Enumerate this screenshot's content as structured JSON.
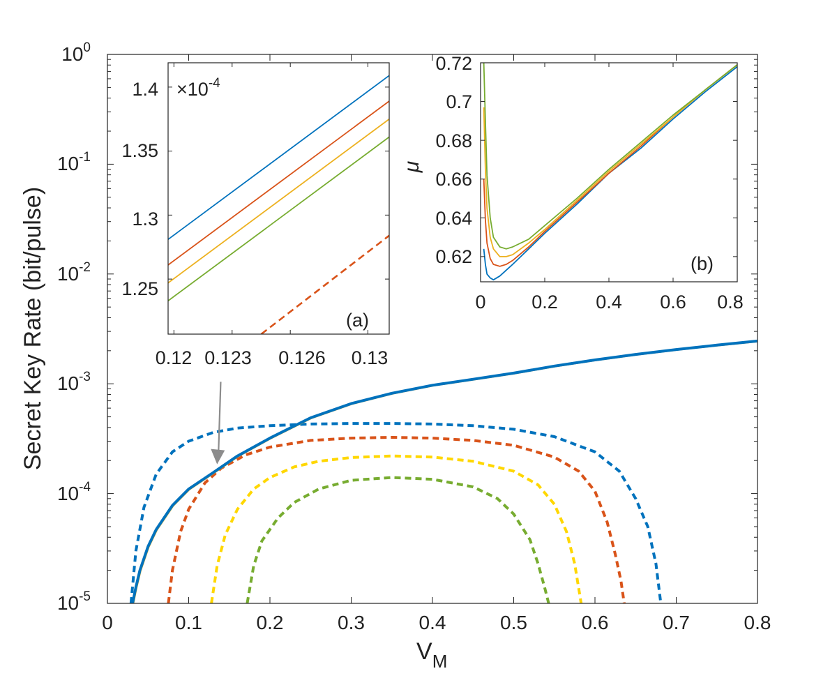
{
  "chart_data": [
    {
      "id": "main",
      "type": "line",
      "xlabel": "V",
      "xlabel_sub": "M",
      "ylabel": "Secret Key Rate (bit/pulse)",
      "yscale": "log",
      "xlim": [
        0,
        0.8
      ],
      "ylim": [
        1e-05,
        1
      ],
      "xticks": [
        "0",
        "0.1",
        "0.2",
        "0.3",
        "0.4",
        "0.5",
        "0.6",
        "0.7",
        "0.8"
      ],
      "yticks": [
        {
          "base": "10",
          "exp": "0",
          "value": 1
        },
        {
          "base": "10",
          "exp": "-1",
          "value": 0.1
        },
        {
          "base": "10",
          "exp": "-2",
          "value": 0.01
        },
        {
          "base": "10",
          "exp": "-3",
          "value": 0.001
        },
        {
          "base": "10",
          "exp": "-4",
          "value": 0.0001
        },
        {
          "base": "10",
          "exp": "-5",
          "value": 1e-05
        }
      ],
      "series": [
        {
          "name": "solid-blue",
          "color": "#0072BD",
          "style": "solid",
          "x": [
            0.031,
            0.035,
            0.04,
            0.05,
            0.06,
            0.08,
            0.1,
            0.13,
            0.16,
            0.2,
            0.25,
            0.3,
            0.35,
            0.4,
            0.45,
            0.5,
            0.55,
            0.6,
            0.65,
            0.7,
            0.75,
            0.8
          ],
          "y": [
            1e-05,
            1.4e-05,
            2e-05,
            3.3e-05,
            4.7e-05,
            7.8e-05,
            0.00011,
            0.000155,
            0.00022,
            0.00032,
            0.00049,
            0.00066,
            0.00082,
            0.00097,
            0.0011,
            0.00125,
            0.00145,
            0.00165,
            0.00185,
            0.00205,
            0.00225,
            0.00245
          ]
        },
        {
          "name": "dashed-blue",
          "color": "#0072BD",
          "style": "dashed",
          "x": [
            0.029,
            0.035,
            0.045,
            0.06,
            0.08,
            0.1,
            0.13,
            0.16,
            0.2,
            0.25,
            0.3,
            0.35,
            0.4,
            0.45,
            0.5,
            0.55,
            0.6,
            0.63,
            0.65,
            0.665,
            0.675,
            0.681
          ],
          "y": [
            1e-05,
            3e-05,
            7.5e-05,
            0.00015,
            0.00024,
            0.0003,
            0.00036,
            0.000395,
            0.000415,
            0.00043,
            0.000435,
            0.000435,
            0.00043,
            0.000415,
            0.000385,
            0.00033,
            0.00024,
            0.00016,
            9e-05,
            5e-05,
            2.3e-05,
            1e-05
          ]
        },
        {
          "name": "dashed-orange",
          "color": "#D95319",
          "style": "dashed",
          "x": [
            0.075,
            0.08,
            0.09,
            0.1,
            0.12,
            0.14,
            0.17,
            0.2,
            0.25,
            0.3,
            0.35,
            0.4,
            0.45,
            0.5,
            0.55,
            0.58,
            0.6,
            0.615,
            0.625,
            0.632,
            0.636
          ],
          "y": [
            1e-05,
            2e-05,
            4.5e-05,
            7.2e-05,
            0.000125,
            0.00017,
            0.000225,
            0.000265,
            0.000305,
            0.00032,
            0.000325,
            0.00032,
            0.000305,
            0.000275,
            0.000215,
            0.00016,
            0.000105,
            5.5e-05,
            2.8e-05,
            1.6e-05,
            1e-05
          ]
        },
        {
          "name": "dashed-yellow",
          "color": "#FFD700",
          "style": "dashed",
          "x": [
            0.128,
            0.135,
            0.145,
            0.16,
            0.18,
            0.2,
            0.23,
            0.26,
            0.3,
            0.35,
            0.4,
            0.45,
            0.5,
            0.53,
            0.55,
            0.565,
            0.575,
            0.583
          ],
          "y": [
            1e-05,
            2.2e-05,
            4.2e-05,
            7.2e-05,
            0.00011,
            0.00014,
            0.000175,
            0.000197,
            0.000213,
            0.00022,
            0.000215,
            0.000197,
            0.00016,
            0.00012,
            8e-05,
            4.5e-05,
            2.3e-05,
            1e-05
          ]
        },
        {
          "name": "dashed-green",
          "color": "#77AC30",
          "style": "dashed",
          "x": [
            0.172,
            0.18,
            0.19,
            0.21,
            0.23,
            0.26,
            0.3,
            0.35,
            0.4,
            0.45,
            0.48,
            0.5,
            0.52,
            0.53,
            0.538,
            0.543
          ],
          "y": [
            1e-05,
            2.2e-05,
            3.7e-05,
            6e-05,
            8.3e-05,
            0.00011,
            0.000132,
            0.00014,
            0.000135,
            0.000115,
            9e-05,
            6.5e-05,
            3.8e-05,
            2.3e-05,
            1.4e-05,
            1e-05
          ]
        }
      ],
      "annotation": {
        "type": "arrow",
        "from": {
          "x": 0.13,
          "y": 0.0009
        },
        "to": {
          "x": 0.135,
          "y": 0.000155
        },
        "color": "#8c8c8c"
      }
    },
    {
      "id": "inset-a",
      "type": "line",
      "label": "(a)",
      "multiplier": {
        "prefix": "×10",
        "exp": "-4"
      },
      "xlim": [
        0.1197,
        0.1311
      ],
      "ylim": [
        1.207,
        1.419
      ],
      "xticks": [
        "0.12",
        "0.123",
        "0.126",
        "0.13"
      ],
      "xtick_values": [
        0.12,
        0.123,
        0.126,
        0.13
      ],
      "yticks": [
        "1.25",
        "1.3",
        "1.35",
        "1.4"
      ],
      "ytick_values": [
        1.25,
        1.3,
        1.35,
        1.4
      ],
      "series": [
        {
          "name": "blue",
          "color": "#0072BD",
          "style": "solid",
          "x": [
            0.1197,
            0.1311
          ],
          "y": [
            1.281,
            1.409
          ]
        },
        {
          "name": "orange",
          "color": "#D95319",
          "style": "solid",
          "x": [
            0.1197,
            0.1311
          ],
          "y": [
            1.261,
            1.389
          ]
        },
        {
          "name": "yellow",
          "color": "#EDB120",
          "style": "solid",
          "x": [
            0.1197,
            0.1311
          ],
          "y": [
            1.247,
            1.375
          ]
        },
        {
          "name": "green",
          "color": "#77AC30",
          "style": "solid",
          "x": [
            0.1197,
            0.1311
          ],
          "y": [
            1.233,
            1.361
          ]
        },
        {
          "name": "orange-dashed",
          "color": "#D95319",
          "style": "dashed",
          "x": [
            0.1245,
            0.1311
          ],
          "y": [
            1.207,
            1.284
          ]
        }
      ]
    },
    {
      "id": "inset-b",
      "type": "line",
      "label": "(b)",
      "ylabel": "μ",
      "xlim": [
        0,
        0.8
      ],
      "ylim": [
        0.607,
        0.72
      ],
      "xticks": [
        "0",
        "0.2",
        "0.4",
        "0.6",
        "0.8"
      ],
      "xtick_values": [
        0,
        0.2,
        0.4,
        0.6,
        0.8
      ],
      "yticks": [
        "0.62",
        "0.64",
        "0.66",
        "0.68",
        "0.7",
        "0.72"
      ],
      "ytick_values": [
        0.62,
        0.64,
        0.66,
        0.68,
        0.7,
        0.72
      ],
      "series": [
        {
          "name": "blue",
          "color": "#0072BD",
          "style": "solid",
          "x": [
            0.01,
            0.015,
            0.02,
            0.03,
            0.04,
            0.06,
            0.08,
            0.1,
            0.15,
            0.2,
            0.3,
            0.4,
            0.5,
            0.6,
            0.7,
            0.8
          ],
          "y": [
            0.624,
            0.616,
            0.611,
            0.609,
            0.608,
            0.61,
            0.613,
            0.616,
            0.624,
            0.632,
            0.647,
            0.663,
            0.676,
            0.691,
            0.705,
            0.718
          ]
        },
        {
          "name": "orange",
          "color": "#D95319",
          "style": "solid",
          "x": [
            0.01,
            0.015,
            0.02,
            0.03,
            0.04,
            0.06,
            0.08,
            0.1,
            0.15,
            0.2,
            0.3,
            0.4,
            0.5,
            0.6,
            0.7,
            0.8
          ],
          "y": [
            0.66,
            0.639,
            0.627,
            0.619,
            0.616,
            0.615,
            0.616,
            0.618,
            0.625,
            0.633,
            0.648,
            0.663,
            0.677,
            0.692,
            0.706,
            0.719
          ]
        },
        {
          "name": "yellow",
          "color": "#EDB120",
          "style": "solid",
          "x": [
            0.01,
            0.015,
            0.02,
            0.03,
            0.04,
            0.06,
            0.08,
            0.1,
            0.15,
            0.2,
            0.3,
            0.4,
            0.5,
            0.6,
            0.7,
            0.8
          ],
          "y": [
            0.697,
            0.665,
            0.645,
            0.63,
            0.624,
            0.62,
            0.62,
            0.621,
            0.627,
            0.634,
            0.649,
            0.664,
            0.678,
            0.692,
            0.706,
            0.719
          ]
        },
        {
          "name": "green",
          "color": "#77AC30",
          "style": "solid",
          "x": [
            0.01,
            0.015,
            0.02,
            0.03,
            0.04,
            0.06,
            0.08,
            0.1,
            0.15,
            0.2,
            0.3,
            0.4,
            0.5,
            0.6,
            0.7,
            0.8
          ],
          "y": [
            0.72,
            0.69,
            0.662,
            0.64,
            0.63,
            0.625,
            0.624,
            0.625,
            0.629,
            0.636,
            0.65,
            0.665,
            0.679,
            0.693,
            0.706,
            0.719
          ]
        }
      ]
    }
  ]
}
